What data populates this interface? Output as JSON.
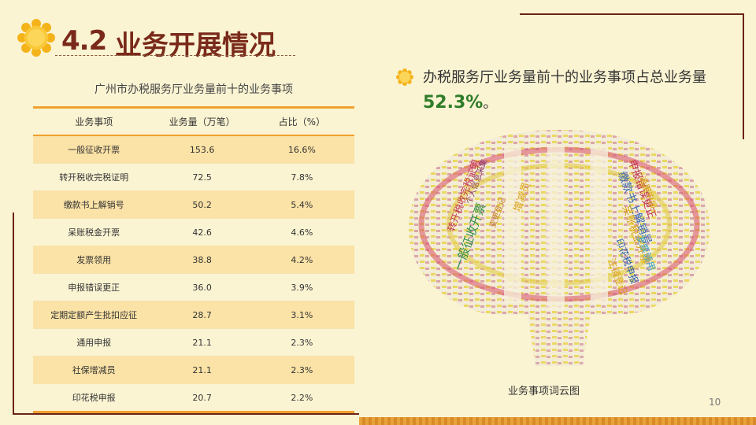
{
  "title": {
    "number": "4.2",
    "text": "业务开展情况"
  },
  "table": {
    "title": "广州市办税服务厅业务量前十的业务事项",
    "headers": [
      "业务事项",
      "业务量（万笔）",
      "占比（%）"
    ],
    "rows": [
      [
        "一般征收开票",
        "153.6",
        "16.6%"
      ],
      [
        "转开税收完税证明",
        "72.5",
        "7.8%"
      ],
      [
        "缴款书上解销号",
        "50.2",
        "5.4%"
      ],
      [
        "呆账税金开票",
        "42.6",
        "4.6%"
      ],
      [
        "发票领用",
        "38.8",
        "4.2%"
      ],
      [
        "申报错误更正",
        "36.0",
        "3.9%"
      ],
      [
        "定期定额产生批扣应征",
        "28.7",
        "3.1%"
      ],
      [
        "通用申报",
        "21.1",
        "2.3%"
      ],
      [
        "社保增减员",
        "21.1",
        "2.3%"
      ],
      [
        "印花税申报",
        "20.7",
        "2.2%"
      ]
    ]
  },
  "summary": {
    "text_before": "办税服务厅业务量前十的业务事项占总业务量",
    "percent": "52.3%",
    "text_after": "。"
  },
  "wordcloud": {
    "caption": "业务事项词云图",
    "words": [
      "一般征收开票",
      "转开税收完税证明",
      "缴款书上解销号",
      "呆账税金开票",
      "发票领用",
      "申报错误更正",
      "印花税申报",
      "通用申报",
      "注销登记",
      "增减员",
      "个人信息采集",
      "变更登记"
    ]
  },
  "page_number": "10",
  "colors": {
    "title": "#7a2a1a",
    "accent": "#f0a030",
    "highlight": "#2f7d2a",
    "background": "#fbf4d3"
  }
}
